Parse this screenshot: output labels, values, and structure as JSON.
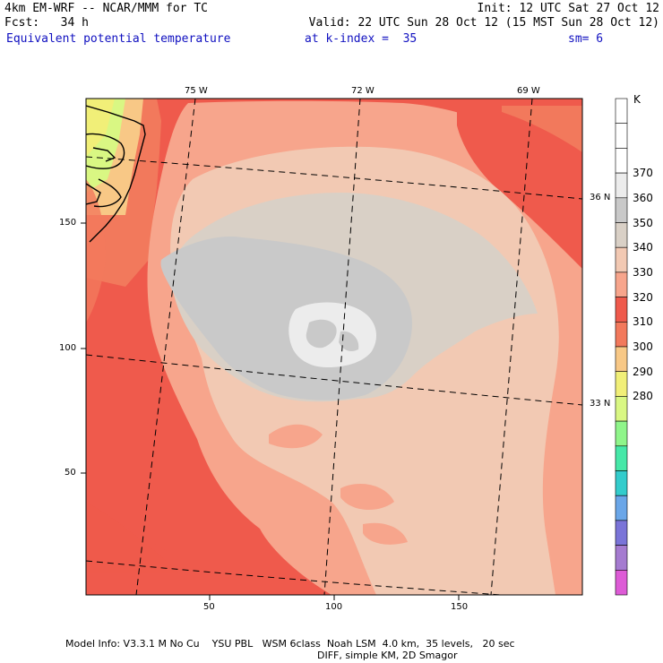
{
  "header": {
    "line1_left": "4km EM-WRF -- NCAR/MMM for TC",
    "line1_right": "Init: 12 UTC Sat 27 Oct 12",
    "line2_left": "Fcst:   34 h",
    "line2_right": "Valid: 22 UTC Sun 28 Oct 12 (15 MST Sun 28 Oct 12)",
    "field": "Equivalent potential temperature",
    "level": "at k-index =  35",
    "smooth": "sm= 6"
  },
  "map": {
    "lon_labels": [
      "75 W",
      "72 W",
      "69 W"
    ],
    "lat_labels": [
      "36 N",
      "33 N"
    ],
    "x_ticks": [
      "50",
      "100",
      "150"
    ],
    "y_ticks": [
      "150",
      "100",
      "50"
    ]
  },
  "colorbar": {
    "unit": "K",
    "labels": [
      "370",
      "360",
      "350",
      "340",
      "330",
      "320",
      "310",
      "300",
      "290",
      "280"
    ],
    "colors": [
      "#ffffff",
      "#ffffff",
      "#ffffff",
      "#ececec",
      "#c9c9c9",
      "#d9d0c6",
      "#f2c9b3",
      "#f7a58c",
      "#ef5a4c",
      "#f2795c",
      "#f8c886",
      "#f1ef78",
      "#d9f783",
      "#8ff58a",
      "#46e8a8",
      "#33cccc",
      "#6aa6e8",
      "#7a74d8",
      "#a57bd0",
      "#dd5bd6"
    ]
  },
  "footer": {
    "line1": "Model Info: V3.3.1 M No Cu    YSU PBL   WSM 6class  Noah LSM  4.0 km,  35 levels,   20 sec",
    "line2": "DIFF, simple KM, 2D Smagor"
  }
}
